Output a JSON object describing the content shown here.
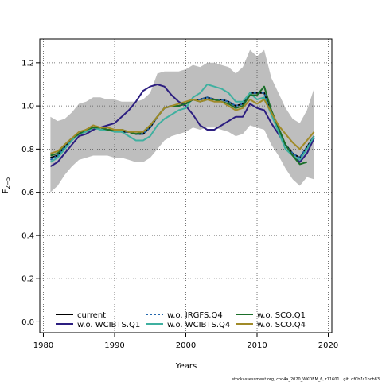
{
  "chart_data": {
    "type": "line",
    "xlabel": "Years",
    "ylabel_main": "F",
    "ylabel_sub": "2−5",
    "xlim": [
      1979.5,
      2020.5
    ],
    "ylim": [
      -0.05,
      1.31
    ],
    "x_ticks": [
      1980,
      1990,
      2000,
      2010,
      2020
    ],
    "y_ticks": [
      0.0,
      0.2,
      0.4,
      0.6,
      0.8,
      1.0,
      1.2
    ],
    "x_tick_labels": [
      "1980",
      "1990",
      "2000",
      "2010",
      "2020"
    ],
    "y_tick_labels": [
      "0.0",
      "0.2",
      "0.4",
      "0.6",
      "0.8",
      "1.0",
      "1.2"
    ],
    "grid": true,
    "legend_position": "bottom-left",
    "confidence_band": {
      "color": "#bebebe",
      "x": [
        1981,
        1982,
        1983,
        1984,
        1985,
        1986,
        1987,
        1988,
        1989,
        1990,
        1991,
        1992,
        1993,
        1994,
        1995,
        1996,
        1997,
        1998,
        1999,
        2000,
        2001,
        2002,
        2003,
        2004,
        2005,
        2006,
        2007,
        2008,
        2009,
        2010,
        2011,
        2012,
        2013,
        2014,
        2015,
        2016,
        2017,
        2018
      ],
      "upper": [
        0.95,
        0.93,
        0.94,
        0.97,
        1.01,
        1.02,
        1.04,
        1.04,
        1.03,
        1.03,
        1.02,
        1.02,
        1.02,
        1.03,
        1.06,
        1.15,
        1.16,
        1.16,
        1.16,
        1.17,
        1.19,
        1.18,
        1.2,
        1.2,
        1.19,
        1.18,
        1.15,
        1.18,
        1.26,
        1.23,
        1.26,
        1.13,
        1.06,
        0.99,
        0.94,
        0.92,
        0.98,
        1.08
      ],
      "lower": [
        0.6,
        0.63,
        0.68,
        0.72,
        0.75,
        0.76,
        0.77,
        0.77,
        0.77,
        0.76,
        0.76,
        0.75,
        0.74,
        0.74,
        0.76,
        0.8,
        0.84,
        0.86,
        0.87,
        0.88,
        0.9,
        0.89,
        0.9,
        0.9,
        0.89,
        0.88,
        0.86,
        0.87,
        0.91,
        0.9,
        0.89,
        0.82,
        0.77,
        0.71,
        0.66,
        0.63,
        0.67,
        0.66
      ]
    },
    "x": [
      1981,
      1982,
      1983,
      1984,
      1985,
      1986,
      1987,
      1988,
      1989,
      1990,
      1991,
      1992,
      1993,
      1994,
      1995,
      1996,
      1997,
      1998,
      1999,
      2000,
      2001,
      2002,
      2003,
      2004,
      2005,
      2006,
      2007,
      2008,
      2009,
      2010,
      2011,
      2012,
      2013,
      2014,
      2015,
      2016,
      2017,
      2018
    ],
    "series": [
      {
        "name": "current",
        "color": "#000000",
        "dash": "",
        "values": [
          0.76,
          0.77,
          0.81,
          0.85,
          0.87,
          0.89,
          0.9,
          0.9,
          0.89,
          0.89,
          0.88,
          0.88,
          0.87,
          0.87,
          0.9,
          0.95,
          0.99,
          1.0,
          1.0,
          1.01,
          1.03,
          1.03,
          1.04,
          1.03,
          1.03,
          1.02,
          1.0,
          1.01,
          1.06,
          1.06,
          1.06,
          0.97,
          0.89,
          0.82,
          0.78,
          0.76,
          0.81,
          0.86
        ]
      },
      {
        "name": "w.o. WCIBTS.Q1",
        "color": "#2c1e80",
        "dash": "",
        "values": [
          0.72,
          0.74,
          0.78,
          0.82,
          0.86,
          0.87,
          0.89,
          0.9,
          0.91,
          0.92,
          0.95,
          0.98,
          1.02,
          1.07,
          1.09,
          1.1,
          1.09,
          1.05,
          1.02,
          1.0,
          0.96,
          0.91,
          0.89,
          0.89,
          0.91,
          0.93,
          0.95,
          0.95,
          1.01,
          0.99,
          0.98,
          0.92,
          0.87,
          0.82,
          0.77,
          0.74,
          0.78,
          0.85
        ]
      },
      {
        "name": "w.o. IRGFS.Q4",
        "color": "#2166ac",
        "dash": "3,2",
        "values": [
          0.75,
          0.77,
          0.81,
          0.85,
          0.87,
          0.89,
          0.9,
          0.9,
          0.89,
          0.89,
          0.88,
          0.88,
          0.87,
          0.87,
          0.9,
          0.95,
          0.99,
          1.0,
          1.0,
          1.01,
          1.03,
          1.03,
          1.04,
          1.03,
          1.03,
          1.02,
          1.0,
          1.01,
          1.06,
          1.06,
          1.06,
          0.97,
          0.89,
          0.82,
          0.78,
          0.76,
          0.81,
          0.86
        ]
      },
      {
        "name": "w.o. WCIBTS.Q4",
        "color": "#3fb0a0",
        "dash": "",
        "values": [
          0.74,
          0.76,
          0.8,
          0.84,
          0.87,
          0.88,
          0.9,
          0.89,
          0.89,
          0.88,
          0.88,
          0.86,
          0.84,
          0.84,
          0.86,
          0.91,
          0.94,
          0.96,
          0.98,
          0.99,
          1.04,
          1.06,
          1.1,
          1.09,
          1.08,
          1.06,
          1.02,
          1.02,
          1.06,
          1.03,
          1.04,
          0.96,
          0.88,
          0.8,
          0.77,
          0.75,
          0.8,
          0.86
        ]
      },
      {
        "name": "w.o. SCO.Q1",
        "color": "#1b6f2a",
        "dash": "",
        "values": [
          0.77,
          0.78,
          0.82,
          0.85,
          0.87,
          0.89,
          0.9,
          0.9,
          0.89,
          0.89,
          0.89,
          0.88,
          0.87,
          0.88,
          0.91,
          0.95,
          0.99,
          1.0,
          1.0,
          1.01,
          1.03,
          1.02,
          1.03,
          1.03,
          1.02,
          1.01,
          0.99,
          1.0,
          1.05,
          1.05,
          1.09,
          0.98,
          0.9,
          0.82,
          0.77,
          0.73,
          0.74,
          null
        ]
      },
      {
        "name": "w.o. SCO.Q4",
        "color": "#a08a28",
        "dash": "",
        "values": [
          0.78,
          0.79,
          0.82,
          0.85,
          0.88,
          0.89,
          0.91,
          0.9,
          0.9,
          0.89,
          0.89,
          0.88,
          0.88,
          0.88,
          0.91,
          0.95,
          0.99,
          1.0,
          1.01,
          1.02,
          1.03,
          1.02,
          1.03,
          1.02,
          1.02,
          1.0,
          0.98,
          0.99,
          1.03,
          1.01,
          1.03,
          0.97,
          0.91,
          0.87,
          0.83,
          0.8,
          0.84,
          0.88
        ]
      }
    ]
  },
  "footer_text": "stockassessment.org, cod4a_2020_WKDEM_6, r11601 , git: df0b7c1bcb83"
}
